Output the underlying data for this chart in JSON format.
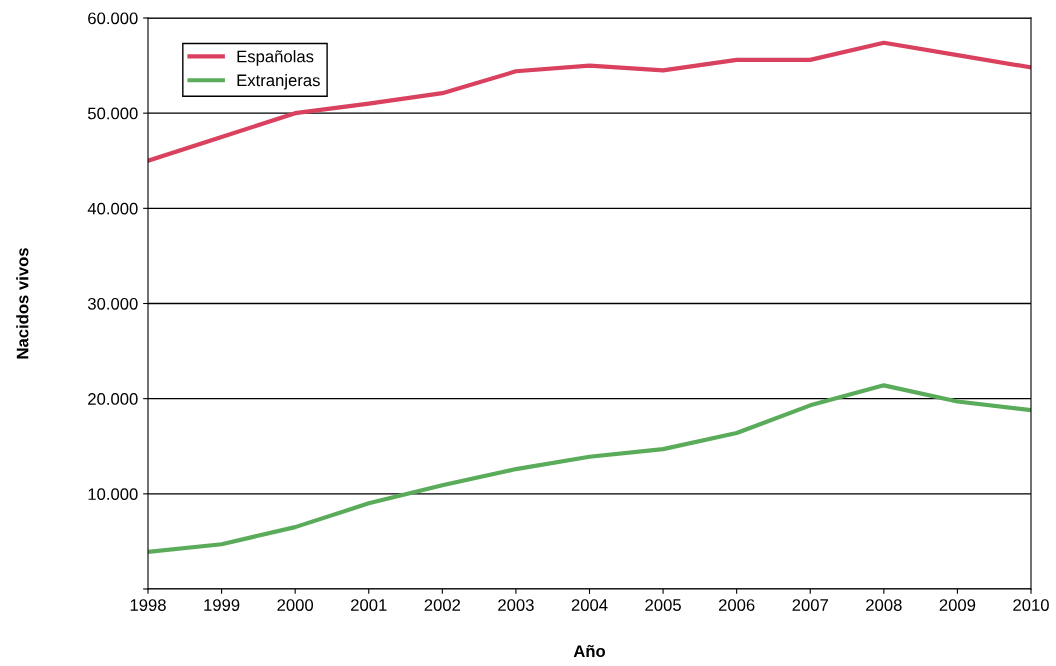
{
  "chart_data": {
    "type": "line",
    "xlabel": "Año",
    "ylabel": "Nacidos vivos",
    "x": [
      1998,
      1999,
      2000,
      2001,
      2002,
      2003,
      2004,
      2005,
      2006,
      2007,
      2008,
      2009,
      2010
    ],
    "series": [
      {
        "name": "Españolas",
        "color": "#d9415e",
        "values": [
          45000,
          47500,
          50000,
          51000,
          52100,
          54400,
          55000,
          54500,
          55600,
          55600,
          57400,
          56100,
          54800
        ]
      },
      {
        "name": "Extranjeras",
        "color": "#5aab5a",
        "values": [
          3900,
          4700,
          6500,
          9000,
          10900,
          12600,
          13900,
          14700,
          16400,
          19300,
          21400,
          19700,
          18800
        ]
      }
    ],
    "xlim": [
      1998,
      2010
    ],
    "xticks": [
      1998,
      1999,
      2000,
      2001,
      2002,
      2003,
      2004,
      2005,
      2006,
      2007,
      2008,
      2009,
      2010
    ],
    "ylim": [
      0,
      60000
    ],
    "yticks": [
      {
        "value": 0,
        "label": null
      },
      {
        "value": 10000,
        "label": "10.000"
      },
      {
        "value": 20000,
        "label": "20.000"
      },
      {
        "value": 30000,
        "label": "30.000"
      },
      {
        "value": 40000,
        "label": "40.000"
      },
      {
        "value": 50000,
        "label": "50.000"
      },
      {
        "value": 60000,
        "label": "60.000"
      }
    ],
    "grid": "y",
    "legend": "top left",
    "line_style": "solid",
    "marker": "none"
  }
}
